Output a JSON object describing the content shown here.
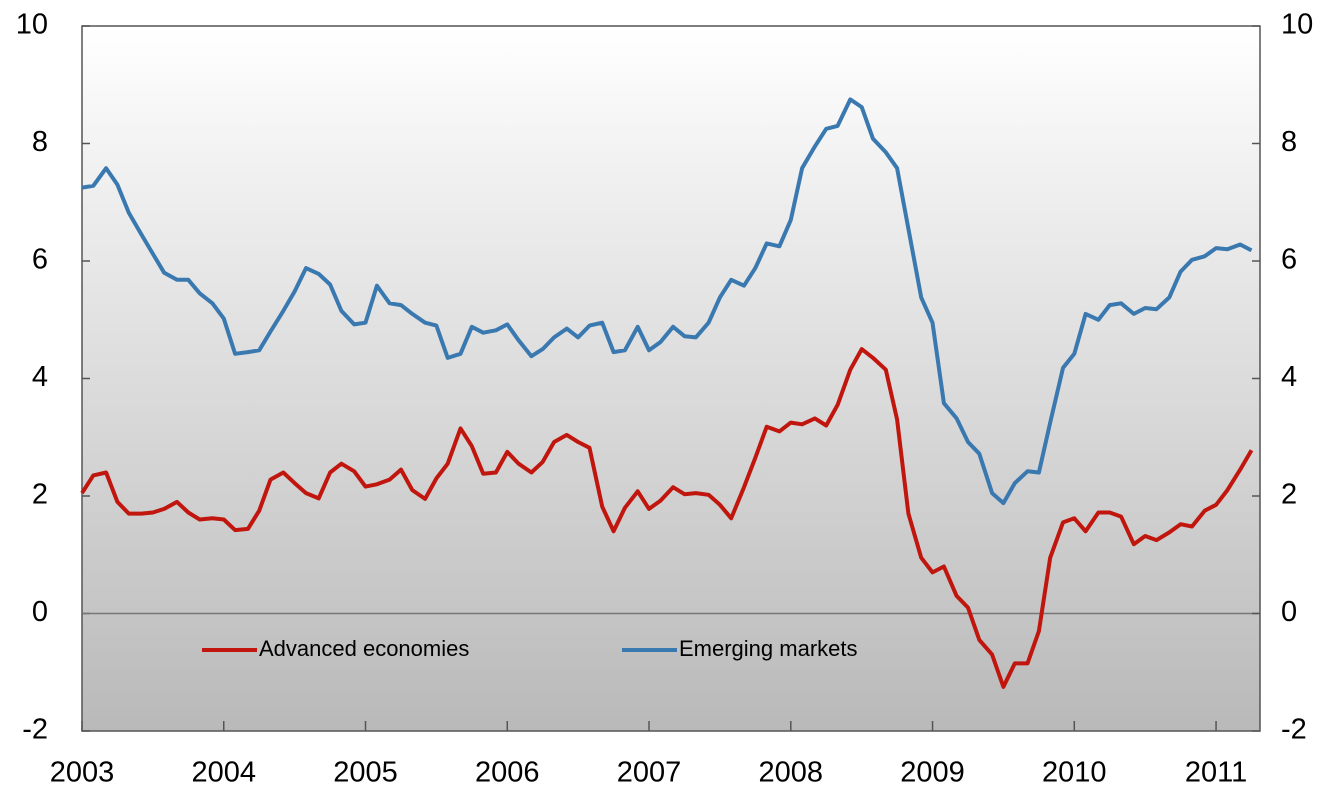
{
  "chart_data": {
    "type": "line",
    "x": [
      2003,
      2003.08,
      2003.17,
      2003.25,
      2003.33,
      2003.42,
      2003.5,
      2003.58,
      2003.67,
      2003.75,
      2003.83,
      2003.92,
      2004,
      2004.08,
      2004.17,
      2004.25,
      2004.33,
      2004.42,
      2004.5,
      2004.58,
      2004.67,
      2004.75,
      2004.83,
      2004.92,
      2005,
      2005.08,
      2005.17,
      2005.25,
      2005.33,
      2005.42,
      2005.5,
      2005.58,
      2005.67,
      2005.75,
      2005.83,
      2005.92,
      2006,
      2006.08,
      2006.17,
      2006.25,
      2006.33,
      2006.42,
      2006.5,
      2006.58,
      2006.67,
      2006.75,
      2006.83,
      2006.92,
      2007,
      2007.08,
      2007.17,
      2007.25,
      2007.33,
      2007.42,
      2007.5,
      2007.58,
      2007.67,
      2007.75,
      2007.83,
      2007.92,
      2008,
      2008.08,
      2008.17,
      2008.25,
      2008.33,
      2008.42,
      2008.5,
      2008.58,
      2008.67,
      2008.75,
      2008.83,
      2008.92,
      2009,
      2009.08,
      2009.17,
      2009.25,
      2009.33,
      2009.42,
      2009.5,
      2009.58,
      2009.67,
      2009.75,
      2009.83,
      2009.92,
      2010,
      2010.08,
      2010.17,
      2010.25,
      2010.33,
      2010.42,
      2010.5,
      2010.58,
      2010.67,
      2010.75,
      2010.83,
      2010.92,
      2011,
      2011.08,
      2011.17,
      2011.25
    ],
    "series": [
      {
        "name": "Advanced economies",
        "color": "#c0160e",
        "values": [
          2.05,
          2.35,
          2.4,
          1.9,
          1.7,
          1.7,
          1.72,
          1.78,
          1.9,
          1.72,
          1.6,
          1.62,
          1.6,
          1.42,
          1.44,
          1.75,
          2.28,
          2.4,
          2.22,
          2.05,
          1.96,
          2.4,
          2.55,
          2.42,
          2.16,
          2.2,
          2.28,
          2.45,
          2.1,
          1.95,
          2.3,
          2.55,
          3.15,
          2.85,
          2.38,
          2.4,
          2.75,
          2.55,
          2.4,
          2.58,
          2.92,
          3.04,
          2.92,
          2.82,
          1.82,
          1.4,
          1.8,
          2.08,
          1.78,
          1.92,
          2.15,
          2.03,
          2.05,
          2.02,
          1.85,
          1.62,
          2.15,
          2.65,
          3.18,
          3.1,
          3.25,
          3.22,
          3.32,
          3.2,
          3.55,
          4.15,
          4.5,
          4.35,
          4.15,
          3.3,
          1.7,
          0.95,
          0.7,
          0.8,
          0.3,
          0.1,
          -0.45,
          -0.7,
          -1.25,
          -0.85,
          -0.85,
          -0.3,
          0.95,
          1.55,
          1.62,
          1.4,
          1.72,
          1.72,
          1.65,
          1.18,
          1.32,
          1.25,
          1.38,
          1.52,
          1.48,
          1.75,
          1.85,
          2.1,
          2.45,
          2.78
        ]
      },
      {
        "name": "Emerging markets",
        "color": "#3a78b0",
        "values": [
          7.25,
          7.28,
          7.58,
          7.3,
          6.82,
          6.45,
          6.12,
          5.8,
          5.68,
          5.68,
          5.45,
          5.28,
          5.02,
          4.42,
          4.45,
          4.48,
          4.8,
          5.15,
          5.48,
          5.88,
          5.78,
          5.6,
          5.15,
          4.92,
          4.95,
          5.58,
          5.28,
          5.25,
          5.1,
          4.95,
          4.9,
          4.35,
          4.42,
          4.88,
          4.78,
          4.82,
          4.92,
          4.65,
          4.38,
          4.5,
          4.7,
          4.85,
          4.7,
          4.9,
          4.95,
          4.45,
          4.48,
          4.88,
          4.48,
          4.62,
          4.88,
          4.72,
          4.7,
          4.95,
          5.38,
          5.68,
          5.58,
          5.88,
          6.3,
          6.25,
          6.7,
          7.58,
          7.95,
          8.25,
          8.3,
          8.75,
          8.62,
          8.08,
          7.85,
          7.58,
          6.55,
          5.38,
          4.95,
          3.58,
          3.32,
          2.92,
          2.72,
          2.05,
          1.88,
          2.22,
          2.42,
          2.4,
          3.25,
          4.18,
          4.42,
          5.1,
          5.0,
          5.25,
          5.28,
          5.1,
          5.2,
          5.18,
          5.38,
          5.82,
          6.02,
          6.08,
          6.22,
          6.2,
          6.28,
          6.18
        ]
      }
    ],
    "xlim": [
      2003,
      2011.31
    ],
    "xticks": [
      2003,
      2004,
      2005,
      2006,
      2007,
      2008,
      2009,
      2010,
      2011
    ],
    "ylim": [
      -2,
      10
    ],
    "yticks": [
      -2,
      0,
      2,
      4,
      6,
      8,
      10
    ],
    "y2lim": [
      -2,
      10
    ],
    "y2ticks": [
      -2,
      0,
      2,
      4,
      6,
      8,
      10
    ],
    "legend": "bottom",
    "zero_line": true
  }
}
